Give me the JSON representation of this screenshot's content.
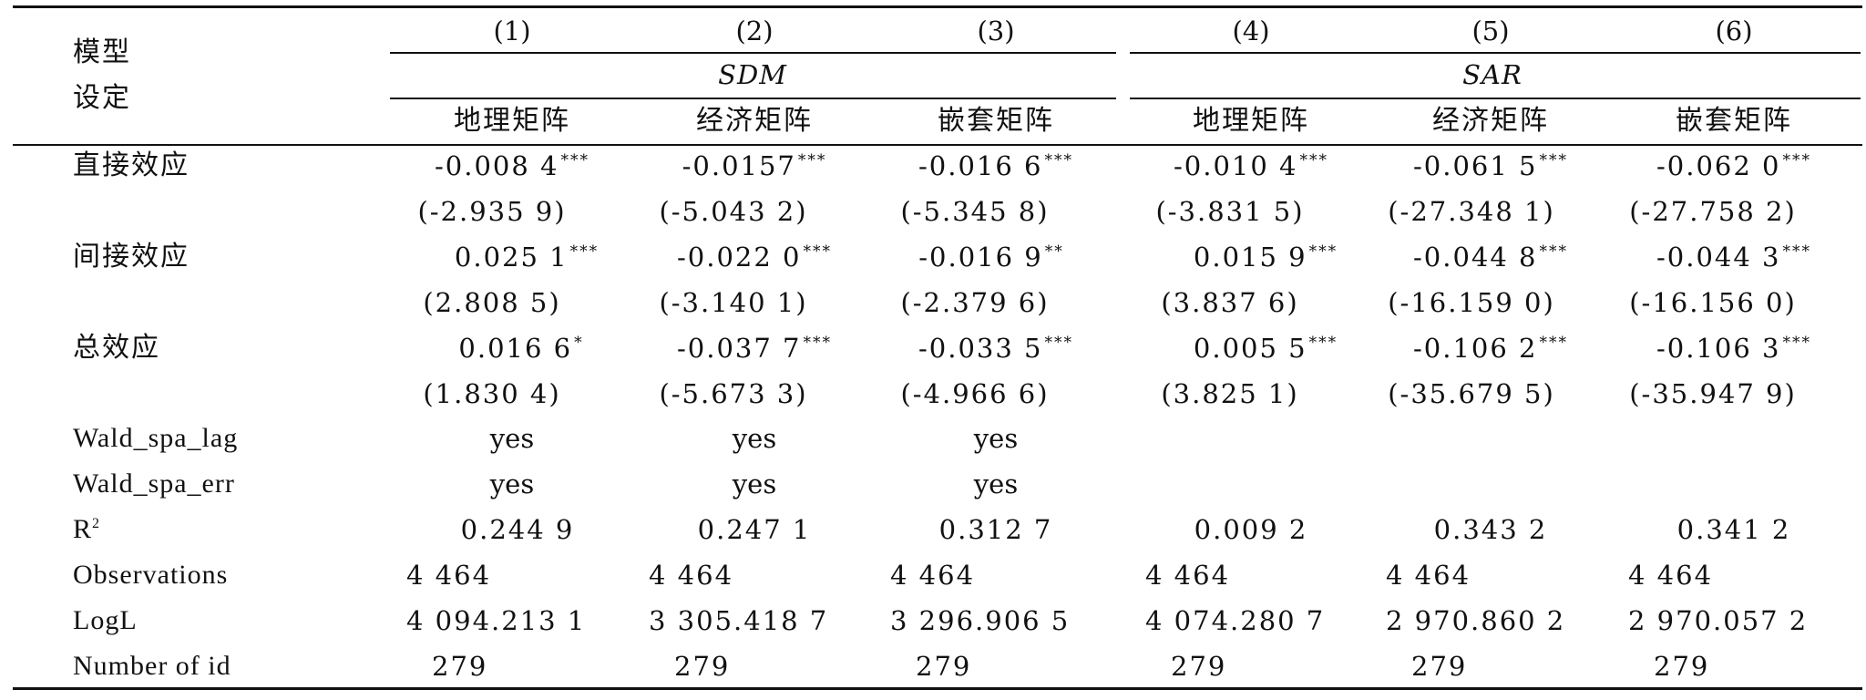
{
  "header": {
    "stub": [
      "模型",
      "设定"
    ],
    "col_numbers": [
      "(1)",
      "(2)",
      "(3)",
      "(4)",
      "(5)",
      "(6)"
    ],
    "group_sdm": "SDM",
    "group_sar": "SAR",
    "matrices": [
      "地理矩阵",
      "经济矩阵",
      "嵌套矩阵",
      "地理矩阵",
      "经济矩阵",
      "嵌套矩阵"
    ]
  },
  "rows": {
    "direct": {
      "label": "直接效应",
      "coef": [
        "-0.008 4",
        "-0.0157",
        "-0.016 6",
        "-0.010 4",
        "-0.061 5",
        "-0.062 0"
      ],
      "stars": [
        "***",
        "***",
        "***",
        "***",
        "***",
        "***"
      ],
      "t": [
        "(-2.935 9)",
        "(-5.043 2)",
        "(-5.345 8)",
        "(-3.831 5)",
        "(-27.348 1)",
        "(-27.758 2)"
      ]
    },
    "indirect": {
      "label": "间接效应",
      "coef": [
        "0.025 1",
        "-0.022 0",
        "-0.016 9",
        "0.015 9",
        "-0.044 8",
        "-0.044 3"
      ],
      "stars": [
        "***",
        "***",
        "**",
        "***",
        "***",
        "***"
      ],
      "t": [
        "(2.808 5)",
        "(-3.140 1)",
        "(-2.379 6)",
        "(3.837 6)",
        "(-16.159 0)",
        "(-16.156 0)"
      ]
    },
    "total": {
      "label": "总效应",
      "coef": [
        "0.016 6",
        "-0.037 7",
        "-0.033 5",
        "0.005 5",
        "-0.106 2",
        "-0.106 3"
      ],
      "stars": [
        "*",
        "***",
        "***",
        "***",
        "***",
        "***"
      ],
      "t": [
        "(1.830 4)",
        "(-5.673 3)",
        "(-4.966 6)",
        "(3.825 1)",
        "(-35.679 5)",
        "(-35.947 9)"
      ]
    },
    "wald_lag": {
      "label": "Wald_spa_lag",
      "values": [
        "yes",
        "yes",
        "yes",
        "",
        "",
        ""
      ]
    },
    "wald_err": {
      "label": "Wald_spa_err",
      "values": [
        "yes",
        "yes",
        "yes",
        "",
        "",
        ""
      ]
    },
    "r2": {
      "label": "R",
      "label_sup": "2",
      "values": [
        "0.244 9",
        "0.247 1",
        "0.312 7",
        "0.009 2",
        "0.343 2",
        "0.341 2"
      ]
    },
    "obs": {
      "label": "Observations",
      "values": [
        "4 464",
        "4 464",
        "4 464",
        "4 464",
        "4 464",
        "4 464"
      ]
    },
    "logl": {
      "label": "LogL",
      "values": [
        "4 094.213 1",
        "3 305.418 7",
        "3 296.906 5",
        "4 074.280 7",
        "2 970.860 2",
        "2 970.057 2"
      ]
    },
    "nid": {
      "label": "Number of id",
      "values": [
        "279",
        "279",
        "279",
        "279",
        "279",
        "279"
      ]
    }
  }
}
